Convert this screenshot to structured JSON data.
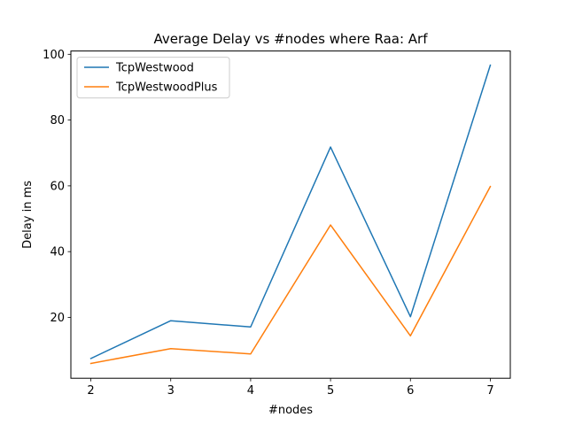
{
  "chart_data": {
    "type": "line",
    "title": "Average Delay vs #nodes where Raa: Arf",
    "xlabel": "#nodes",
    "ylabel": "Delay in ms",
    "x": [
      2,
      3,
      4,
      5,
      6,
      7
    ],
    "xticks": [
      2,
      3,
      4,
      5,
      6,
      7
    ],
    "yticks": [
      20,
      40,
      60,
      80,
      100
    ],
    "xlim": [
      1.75,
      7.25
    ],
    "ylim": [
      1.5,
      101.0
    ],
    "grid": false,
    "legend_position": "top-left",
    "series": [
      {
        "name": "TcpWestwood",
        "color": "#1f77b4",
        "values": [
          7.5,
          19.0,
          17.1,
          71.8,
          20.2,
          96.7
        ]
      },
      {
        "name": "TcpWestwoodPlus",
        "color": "#ff7f0e",
        "values": [
          6.0,
          10.5,
          8.9,
          48.1,
          14.4,
          59.8
        ]
      }
    ]
  }
}
